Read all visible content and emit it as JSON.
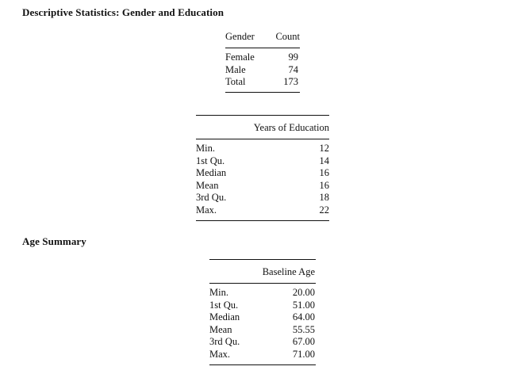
{
  "section1": {
    "title": "Descriptive Statistics: Gender and Education",
    "gender_table": {
      "headers": [
        "Gender",
        "Count"
      ],
      "rows": [
        {
          "label": "Female",
          "value": "99"
        },
        {
          "label": "Male",
          "value": "74"
        },
        {
          "label": "Total",
          "value": "173"
        }
      ]
    },
    "education_table": {
      "header": "Years of Education",
      "rows": [
        {
          "label": "Min.",
          "value": "12"
        },
        {
          "label": "1st Qu.",
          "value": "14"
        },
        {
          "label": "Median",
          "value": "16"
        },
        {
          "label": "Mean",
          "value": "16"
        },
        {
          "label": "3rd Qu.",
          "value": "18"
        },
        {
          "label": "Max.",
          "value": "22"
        }
      ]
    }
  },
  "section2": {
    "title": "Age Summary",
    "age_table": {
      "header": "Baseline Age",
      "rows": [
        {
          "label": "Min.",
          "value": "20.00"
        },
        {
          "label": "1st Qu.",
          "value": "51.00"
        },
        {
          "label": "Median",
          "value": "64.00"
        },
        {
          "label": "Mean",
          "value": "55.55"
        },
        {
          "label": "3rd Qu.",
          "value": "67.00"
        },
        {
          "label": "Max.",
          "value": "71.00"
        }
      ]
    }
  }
}
